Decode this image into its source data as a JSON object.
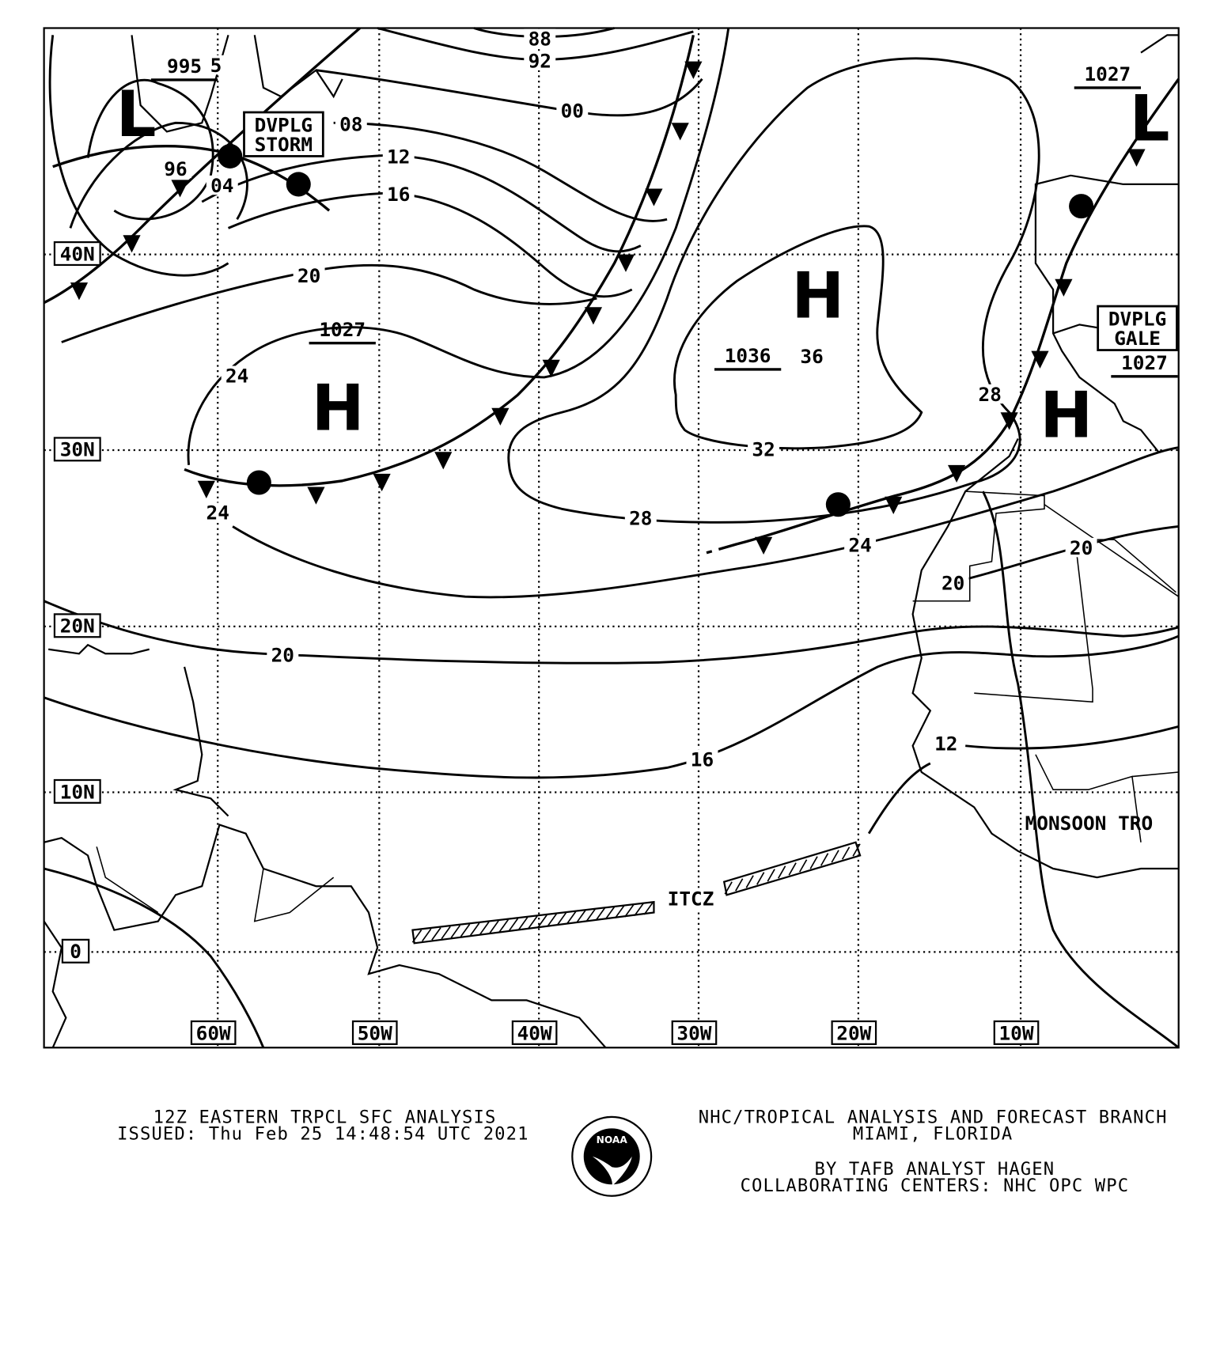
{
  "map": {
    "longitude_labels": [
      "60W",
      "50W",
      "40W",
      "30W",
      "20W",
      "10W"
    ],
    "latitude_labels": [
      "40N",
      "30N",
      "20N",
      "10N",
      "0"
    ],
    "isobar_labels": [
      "88",
      "92",
      "00",
      "08",
      "12",
      "16",
      "20",
      "24",
      "24",
      "20",
      "28",
      "32",
      "36",
      "28",
      "24",
      "20",
      "20",
      "16",
      "12",
      "04",
      "96",
      "5"
    ],
    "pressure_centers": [
      {
        "type": "L",
        "value": "995"
      },
      {
        "type": "H",
        "value": "1027"
      },
      {
        "type": "H",
        "value": "1036"
      },
      {
        "type": "L",
        "value": "1027"
      },
      {
        "type": "H",
        "value": "1027"
      }
    ],
    "warnings": [
      {
        "line1": "DVPLG",
        "line2": "STORM"
      },
      {
        "line1": "DVPLG",
        "line2": "GALE"
      }
    ],
    "features": {
      "itcz": "ITCZ",
      "monsoon": "MONSOON TRO"
    }
  },
  "footer": {
    "title": "12Z EASTERN TRPCL SFC ANALYSIS",
    "issued": "ISSUED: Thu Feb 25 14:48:54 UTC 2021",
    "agency": "NHC/TROPICAL ANALYSIS AND FORECAST BRANCH",
    "location": "MIAMI,  FLORIDA",
    "analyst": "BY TAFB ANALYST  HAGEN",
    "collaborating": "COLLABORATING CENTERS: NHC OPC WPC",
    "logo_text": "NOAA"
  }
}
